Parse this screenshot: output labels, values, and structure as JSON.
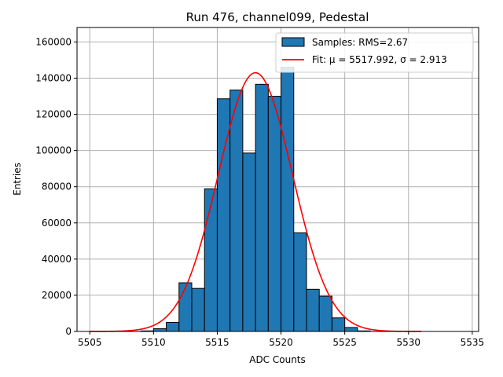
{
  "chart_data": {
    "type": "bar",
    "title": "Run 476, channel099, Pedestal",
    "xlabel": "ADC Counts",
    "ylabel": "Entries",
    "xlim": [
      5504,
      5535.5
    ],
    "ylim": [
      0,
      168000
    ],
    "xticks": [
      5505,
      5510,
      5515,
      5520,
      5525,
      5530,
      5535
    ],
    "yticks": [
      0,
      20000,
      40000,
      60000,
      80000,
      100000,
      120000,
      140000,
      160000
    ],
    "grid": true,
    "legend_position": "top-right",
    "bin_edges": [
      5509,
      5510,
      5511,
      5512,
      5513,
      5514,
      5515,
      5516,
      5517,
      5518,
      5519,
      5520,
      5521,
      5522,
      5523,
      5524,
      5525,
      5526,
      5527
    ],
    "bin_counts": [
      300,
      1500,
      5000,
      26900,
      23800,
      78800,
      128600,
      133400,
      98600,
      136600,
      130000,
      146000,
      54500,
      23300,
      19500,
      7500,
      2200,
      300
    ],
    "series": [
      {
        "name": "Samples: RMS=2.67",
        "kind": "histogram",
        "color": "#1f77b4"
      },
      {
        "name": "Fit: μ = 5517.992, σ = 2.913",
        "kind": "gaussian",
        "color": "#ff0000",
        "mu": 5517.992,
        "sigma": 2.913,
        "amplitude": 143000,
        "x_range": [
          5505,
          5531
        ]
      }
    ]
  }
}
